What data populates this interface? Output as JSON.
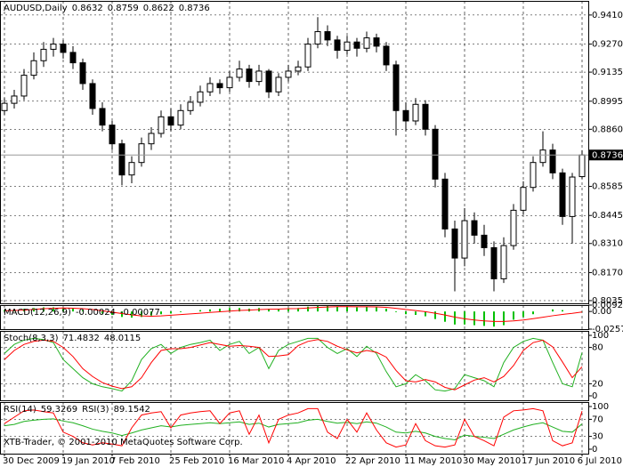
{
  "chart_data": [
    {
      "type": "candlestick",
      "title": "AUDUSD,Daily",
      "categories": [
        "30 Dec 2009",
        null,
        null,
        null,
        null,
        null,
        "19 Jan 2010",
        null,
        null,
        null,
        null,
        "7 Feb 2010",
        null,
        null,
        null,
        null,
        null,
        "25 Feb 2010",
        null,
        null,
        null,
        null,
        null,
        "16 Mar 2010",
        null,
        null,
        null,
        null,
        null,
        "4 Apr 2010",
        null,
        null,
        null,
        null,
        null,
        "22 Apr 2010",
        null,
        null,
        null,
        null,
        null,
        "11 May 2010",
        null,
        null,
        null,
        null,
        null,
        "30 May 2010",
        null,
        null,
        null,
        null,
        null,
        "17 Jun 2010",
        null,
        null,
        null,
        null,
        null,
        "6 Jul 2010"
      ],
      "open": [
        0.895,
        0.8985,
        0.902,
        0.912,
        0.919,
        0.9245,
        0.927,
        0.923,
        0.918,
        0.908,
        0.896,
        0.888,
        0.879,
        0.864,
        0.87,
        0.879,
        0.884,
        0.892,
        0.888,
        0.895,
        0.899,
        0.904,
        0.908,
        0.906,
        0.911,
        0.915,
        0.909,
        0.914,
        0.904,
        0.911,
        0.914,
        0.916,
        0.927,
        0.933,
        0.929,
        0.924,
        0.928,
        0.925,
        0.93,
        0.926,
        0.917,
        0.895,
        0.89,
        0.898,
        0.886,
        0.862,
        0.838,
        0.824,
        0.842,
        0.835,
        0.829,
        0.814,
        0.83,
        0.847,
        0.858,
        0.87,
        0.876,
        0.865,
        0.844,
        0.8632
      ],
      "high": [
        0.901,
        0.905,
        0.915,
        0.923,
        0.928,
        0.93,
        0.929,
        0.926,
        0.92,
        0.91,
        0.899,
        0.89,
        0.881,
        0.873,
        0.882,
        0.887,
        0.895,
        0.896,
        0.898,
        0.902,
        0.907,
        0.911,
        0.91,
        0.914,
        0.919,
        0.917,
        0.917,
        0.915,
        0.913,
        0.917,
        0.919,
        0.93,
        0.94,
        0.936,
        0.931,
        0.931,
        0.93,
        0.933,
        0.932,
        0.928,
        0.919,
        0.899,
        0.901,
        0.9,
        0.888,
        0.865,
        0.842,
        0.848,
        0.846,
        0.84,
        0.832,
        0.834,
        0.85,
        0.861,
        0.873,
        0.885,
        0.879,
        0.867,
        0.865,
        0.8759
      ],
      "low": [
        0.893,
        0.896,
        0.9,
        0.91,
        0.916,
        0.921,
        0.92,
        0.915,
        0.905,
        0.893,
        0.885,
        0.876,
        0.859,
        0.86,
        0.868,
        0.876,
        0.882,
        0.885,
        0.886,
        0.893,
        0.897,
        0.902,
        0.903,
        0.904,
        0.909,
        0.906,
        0.907,
        0.901,
        0.902,
        0.909,
        0.912,
        0.914,
        0.925,
        0.926,
        0.92,
        0.922,
        0.921,
        0.923,
        0.923,
        0.914,
        0.883,
        0.885,
        0.888,
        0.883,
        0.858,
        0.834,
        0.808,
        0.82,
        0.831,
        0.825,
        0.808,
        0.812,
        0.828,
        0.845,
        0.856,
        0.868,
        0.862,
        0.84,
        0.831,
        0.8622
      ],
      "close": [
        0.8985,
        0.902,
        0.912,
        0.919,
        0.9245,
        0.927,
        0.923,
        0.918,
        0.908,
        0.896,
        0.888,
        0.879,
        0.864,
        0.87,
        0.879,
        0.884,
        0.892,
        0.888,
        0.895,
        0.899,
        0.904,
        0.908,
        0.906,
        0.911,
        0.915,
        0.909,
        0.914,
        0.904,
        0.911,
        0.914,
        0.916,
        0.927,
        0.933,
        0.929,
        0.924,
        0.928,
        0.925,
        0.93,
        0.926,
        0.917,
        0.895,
        0.89,
        0.898,
        0.886,
        0.862,
        0.838,
        0.824,
        0.842,
        0.835,
        0.829,
        0.814,
        0.83,
        0.847,
        0.858,
        0.87,
        0.876,
        0.865,
        0.844,
        0.863,
        0.8736
      ],
      "up_color": "#ffffff",
      "down_color": "#000000",
      "line_color": "#000000",
      "ylim": [
        0.8022,
        0.9478
      ],
      "yticks": [
        {
          "value": 0.941,
          "label": "0.9410"
        },
        {
          "value": 0.927,
          "label": "0.9270"
        },
        0.9135,
        0.8995,
        {
          "value": 0.886,
          "label": "0.8860"
        },
        0.8585,
        0.8445,
        {
          "value": 0.831,
          "label": "0.8310"
        },
        {
          "value": 0.817,
          "label": "0.8170"
        },
        0.8035
      ],
      "grid": true
    },
    {
      "type": "macd",
      "title": "MACD(12,26,9)",
      "series": [
        {
          "color": "#00c000",
          "values": [
            0.002,
            0.003,
            0.004,
            0.005,
            0.006,
            0.006,
            0.005,
            0.004,
            0.002,
            0.0,
            -0.003,
            -0.005,
            -0.008,
            -0.009,
            -0.008,
            -0.006,
            -0.004,
            -0.003,
            -0.001,
            0.0,
            0.002,
            0.003,
            0.004,
            0.005,
            0.005,
            0.004,
            0.005,
            0.004,
            0.004,
            0.005,
            0.005,
            0.007,
            0.008,
            0.008,
            0.007,
            0.007,
            0.006,
            0.007,
            0.006,
            0.004,
            -0.001,
            -0.004,
            -0.005,
            -0.007,
            -0.011,
            -0.015,
            -0.019,
            -0.019,
            -0.02,
            -0.021,
            -0.022,
            -0.02,
            -0.012,
            -0.008,
            -0.004,
            0.0,
            0.003,
            0.002,
            0.0,
            -0.00024
          ]
        },
        {
          "color": "#ff0000",
          "values": [
            0.001,
            0.0015,
            0.002,
            0.003,
            0.004,
            0.0045,
            0.005,
            0.0048,
            0.004,
            0.003,
            0.001,
            -0.001,
            -0.003,
            -0.005,
            -0.0065,
            -0.007,
            -0.0065,
            -0.0055,
            -0.0045,
            -0.0035,
            -0.0025,
            -0.0015,
            -0.0005,
            0.0005,
            0.0015,
            0.002,
            0.0028,
            0.0032,
            0.0035,
            0.004,
            0.0042,
            0.005,
            0.0058,
            0.0065,
            0.007,
            0.007,
            0.0068,
            0.0068,
            0.0066,
            0.006,
            0.0046,
            0.003,
            0.0014,
            -0.0003,
            -0.0025,
            -0.0052,
            -0.0082,
            -0.0106,
            -0.0125,
            -0.0138,
            -0.0145,
            -0.0145,
            -0.0138,
            -0.0124,
            -0.0105,
            -0.0084,
            -0.0062,
            -0.0043,
            -0.0027,
            -0.00077
          ]
        }
      ],
      "ylim": [
        -0.02572,
        0.00926
      ],
      "yticks": [
        0.00926,
        {
          "value": 0,
          "label": "0.00"
        },
        -0.02572
      ],
      "grid": false
    },
    {
      "type": "line",
      "title": "Stoch(8,3,3)",
      "series": [
        {
          "color": "#20b020",
          "values": [
            70,
            85,
            92,
            95,
            93,
            88,
            60,
            45,
            30,
            20,
            15,
            12,
            8,
            25,
            60,
            78,
            85,
            70,
            80,
            85,
            88,
            92,
            75,
            85,
            90,
            70,
            80,
            45,
            75,
            85,
            90,
            95,
            95,
            80,
            70,
            78,
            65,
            82,
            70,
            40,
            15,
            20,
            35,
            25,
            10,
            8,
            12,
            35,
            30,
            25,
            15,
            55,
            80,
            90,
            95,
            92,
            55,
            20,
            15,
            71.4832
          ]
        },
        {
          "color": "#ff0000",
          "values": [
            60,
            75,
            85,
            90,
            92,
            90,
            80,
            65,
            45,
            32,
            22,
            16,
            12,
            15,
            30,
            55,
            75,
            78,
            78,
            80,
            84,
            88,
            85,
            82,
            83,
            82,
            80,
            65,
            66,
            68,
            83,
            90,
            93,
            90,
            82,
            76,
            71,
            75,
            72,
            64,
            42,
            25,
            23,
            27,
            23,
            14,
            10,
            18,
            26,
            30,
            23,
            32,
            50,
            75,
            88,
            92,
            81,
            56,
            30,
            48.0115
          ]
        }
      ],
      "ylim": [
        0,
        100
      ],
      "yticks": [
        100,
        80,
        20,
        0
      ],
      "grid": true
    },
    {
      "type": "line",
      "series": [
        {
          "name": "RSI(14)",
          "color": "#20b020",
          "values": [
            55,
            58,
            65,
            68,
            70,
            71,
            66,
            62,
            55,
            47,
            42,
            38,
            32,
            38,
            45,
            50,
            55,
            52,
            56,
            58,
            60,
            62,
            60,
            62,
            64,
            58,
            61,
            52,
            58,
            60,
            62,
            68,
            70,
            65,
            61,
            63,
            60,
            64,
            61,
            52,
            40,
            38,
            42,
            38,
            30,
            25,
            22,
            33,
            30,
            28,
            25,
            35,
            45,
            52,
            58,
            62,
            52,
            42,
            40,
            59.3269
          ]
        },
        {
          "name": "RSI(3)",
          "color": "#ff0000",
          "values": [
            60,
            75,
            90,
            92,
            88,
            85,
            40,
            30,
            15,
            10,
            15,
            12,
            8,
            50,
            80,
            85,
            88,
            50,
            80,
            85,
            88,
            90,
            60,
            85,
            90,
            35,
            80,
            15,
            70,
            80,
            85,
            95,
            95,
            40,
            25,
            70,
            40,
            85,
            45,
            15,
            5,
            10,
            60,
            20,
            8,
            5,
            10,
            70,
            30,
            20,
            8,
            75,
            90,
            92,
            95,
            90,
            20,
            8,
            15,
            89.1542
          ]
        }
      ],
      "ylim": [
        0,
        100
      ],
      "yticks": [
        100,
        70,
        30,
        0
      ],
      "grid": true
    }
  ],
  "footer": "XTB-Trader, © 2001-2010 MetaQuotes Software Corp."
}
